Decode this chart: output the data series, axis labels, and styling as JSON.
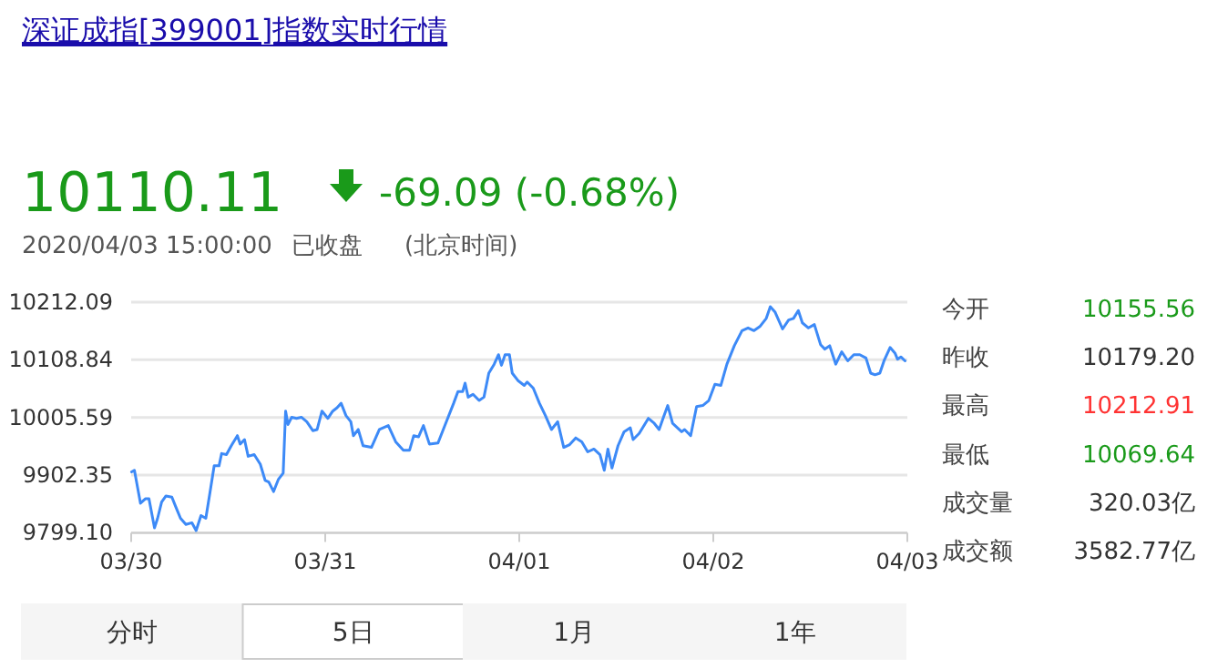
{
  "chart_data": [
    {
      "type": "line",
      "title": "深证成指[399001]指数实时行情",
      "annotations": [
        "10110.11",
        "-69.09 (-0.68%)",
        "2020/04/03 15:00:00",
        "已收盘",
        "(北京时间)",
        "分时",
        "5日",
        "1月",
        "1年"
      ],
      "xlim": [
        "2020-03-30",
        "2020-04-03"
      ],
      "xticks": [
        {
          "value": "2020-03-30",
          "label": "03/30"
        },
        {
          "value": "2020-03-31",
          "label": "03/31"
        },
        {
          "value": "2020-04-01",
          "label": "04/01"
        },
        {
          "value": "2020-04-02",
          "label": "04/02"
        },
        {
          "value": "2020-04-03",
          "label": "04/03"
        }
      ],
      "ylim": [
        9799.1,
        10212.09
      ],
      "yticks": [
        {
          "value": 9799.1,
          "label": "9799.10"
        },
        9902.35,
        10005.59,
        10108.84,
        10212.09
      ],
      "grid": "y",
      "series": [
        {
          "color": "#3d8af7",
          "x": [
            "2020-03-30T00:03",
            "2020-03-30T00:24",
            "2020-03-30T01:09",
            "2020-03-30T01:45",
            "2020-03-30T02:12",
            "2020-03-30T02:53",
            "2020-03-30T03:16",
            "2020-03-30T03:46",
            "2020-03-30T04:18",
            "2020-03-30T05:02",
            "2020-03-30T05:30",
            "2020-03-30T06:06",
            "2020-03-30T06:46",
            "2020-03-30T07:31",
            "2020-03-30T08:02",
            "2020-03-30T08:38",
            "2020-03-30T09:14",
            "2020-03-30T09:46",
            "2020-03-30T10:16",
            "2020-03-30T10:52",
            "2020-03-30T11:11",
            "2020-03-30T11:47",
            "2020-03-30T12:23",
            "2020-03-30T13:08",
            "2020-03-30T13:29",
            "2020-03-30T14:01",
            "2020-03-30T14:28",
            "2020-03-30T15:13",
            "2020-03-30T15:58",
            "2020-03-30T16:34",
            "2020-03-30T17:01",
            "2020-03-30T17:37",
            "2020-03-30T18:13",
            "2020-03-30T18:48",
            "2020-03-30T19:06",
            "2020-03-30T19:24",
            "2020-03-30T19:51",
            "2020-03-30T20:27",
            "2020-03-30T21:03",
            "2020-03-30T21:43",
            "2020-03-30T22:28",
            "2020-03-30T23:00",
            "2020-03-30T23:36",
            "2020-03-31T00:20",
            "2020-03-31T00:56",
            "2020-03-31T01:28",
            "2020-03-31T01:58",
            "2020-03-31T02:34",
            "2020-03-31T03:10",
            "2020-03-31T03:29",
            "2020-03-31T04:05",
            "2020-03-31T04:41",
            "2020-03-31T05:43",
            "2020-03-31T06:42",
            "2020-03-31T07:48",
            "2020-03-31T08:43",
            "2020-03-31T09:40",
            "2020-03-31T10:26",
            "2020-03-31T10:57",
            "2020-03-31T11:33",
            "2020-03-31T12:09",
            "2020-03-31T12:53",
            "2020-03-31T13:57",
            "2020-03-31T14:54",
            "2020-03-31T15:53",
            "2020-03-31T16:25",
            "2020-03-31T17:00",
            "2020-03-31T17:18",
            "2020-03-31T17:41",
            "2020-03-31T18:17",
            "2020-03-31T19:02",
            "2020-03-31T19:38",
            "2020-03-31T20:14",
            "2020-03-31T20:54",
            "2020-03-31T21:26",
            "2020-03-31T21:48",
            "2020-03-31T22:15",
            "2020-03-31T22:47",
            "2020-03-31T23:08",
            "2020-03-31T23:53",
            "2020-04-01T00:37",
            "2020-04-01T00:59",
            "2020-04-01T01:44",
            "2020-04-01T02:30",
            "2020-04-01T03:14",
            "2020-04-01T03:59",
            "2020-04-01T04:45",
            "2020-04-01T05:30",
            "2020-04-01T06:14",
            "2020-04-01T06:59",
            "2020-04-01T07:44",
            "2020-04-01T08:28",
            "2020-04-01T09:14",
            "2020-04-01T09:59",
            "2020-04-01T10:31",
            "2020-04-01T10:58",
            "2020-04-01T11:28",
            "2020-04-01T12:13",
            "2020-04-01T12:58",
            "2020-04-01T13:44",
            "2020-04-01T14:05",
            "2020-04-01T14:50",
            "2020-04-01T15:58",
            "2020-04-01T16:42",
            "2020-04-01T17:18",
            "2020-04-01T17:50",
            "2020-04-01T18:22",
            "2020-04-01T18:58",
            "2020-04-01T19:34",
            "2020-04-01T20:05",
            "2020-04-01T20:27",
            "2020-04-01T21:12",
            "2020-04-01T21:56",
            "2020-04-01T22:42",
            "2020-04-01T23:27",
            "2020-04-02T00:12",
            "2020-04-02T00:56",
            "2020-04-02T01:41",
            "2020-04-02T02:36",
            "2020-04-02T03:33",
            "2020-04-02T04:18",
            "2020-04-02T05:02",
            "2020-04-02T05:48",
            "2020-04-02T06:33",
            "2020-04-02T07:03",
            "2020-04-02T07:39",
            "2020-04-02T08:34",
            "2020-04-02T09:19",
            "2020-04-02T09:55",
            "2020-04-02T10:31",
            "2020-04-02T11:01",
            "2020-04-02T11:46",
            "2020-04-02T12:30",
            "2020-04-02T13:16",
            "2020-04-02T13:48",
            "2020-04-02T14:24",
            "2020-04-02T15:09",
            "2020-04-02T15:53",
            "2020-04-02T16:38",
            "2020-04-02T17:23",
            "2020-04-02T18:07",
            "2020-04-02T18:53",
            "2020-04-02T19:28",
            "2020-04-02T20:00",
            "2020-04-02T20:36",
            "2020-04-02T21:07",
            "2020-04-02T21:52",
            "2020-04-02T22:28",
            "2020-04-02T22:47",
            "2020-04-02T23:12",
            "2020-04-02T23:43"
          ],
          "values": [
            9908,
            9911,
            9852,
            9860,
            9860,
            9808,
            9825,
            9854,
            9865,
            9863,
            9846,
            9825,
            9814,
            9817,
            9803,
            9830,
            9825,
            9873,
            9919,
            9919,
            9941,
            9939,
            9955,
            9973,
            9958,
            9966,
            9936,
            9939,
            9922,
            9893,
            9890,
            9873,
            9895,
            9906,
            10017,
            9993,
            10006,
            10004,
            10006,
            9998,
            9982,
            9984,
            10017,
            10004,
            10017,
            10023,
            10031,
            10009,
            9998,
            9973,
            9984,
            9955,
            9952,
            9984,
            9991,
            9962,
            9947,
            9947,
            9973,
            9971,
            9991,
            9958,
            9960,
            9995,
            10031,
            10052,
            10052,
            10067,
            10042,
            10047,
            10036,
            10042,
            10085,
            10101,
            10118,
            10099,
            10118,
            10118,
            10085,
            10071,
            10063,
            10069,
            10058,
            10031,
            10009,
            9984,
            9998,
            9952,
            9957,
            9969,
            9962,
            9944,
            9949,
            9939,
            9911,
            9949,
            9915,
            9955,
            9980,
            9987,
            9966,
            9977,
            10004,
            9995,
            9984,
            10006,
            10027,
            9995,
            9987,
            9980,
            9984,
            9973,
            10025,
            10027,
            10036,
            10065,
            10063,
            10101,
            10134,
            10161,
            10166,
            10161,
            10169,
            10183,
            10204,
            10194,
            10164,
            10180,
            10183,
            10197,
            10175,
            10166,
            10172,
            10136,
            10128,
            10134,
            10101,
            10123,
            10107,
            10118,
            10118,
            10112,
            10085,
            10082,
            10085,
            10107,
            10131,
            10121,
            10110,
            10114,
            10107
          ]
        }
      ]
    },
    {
      "type": "other",
      "categories": [
        "今开",
        "昨收",
        "最高",
        "最低",
        "成交量",
        "成交额"
      ],
      "value_labels": [
        "10155.56",
        "10179.20",
        "10212.91",
        "10069.64",
        "320.03亿",
        "3582.77亿"
      ],
      "colors": [
        "#1a9a1a",
        "#333333",
        "#ff3333",
        "#1a9a1a",
        "#333333",
        "#333333"
      ]
    }
  ]
}
